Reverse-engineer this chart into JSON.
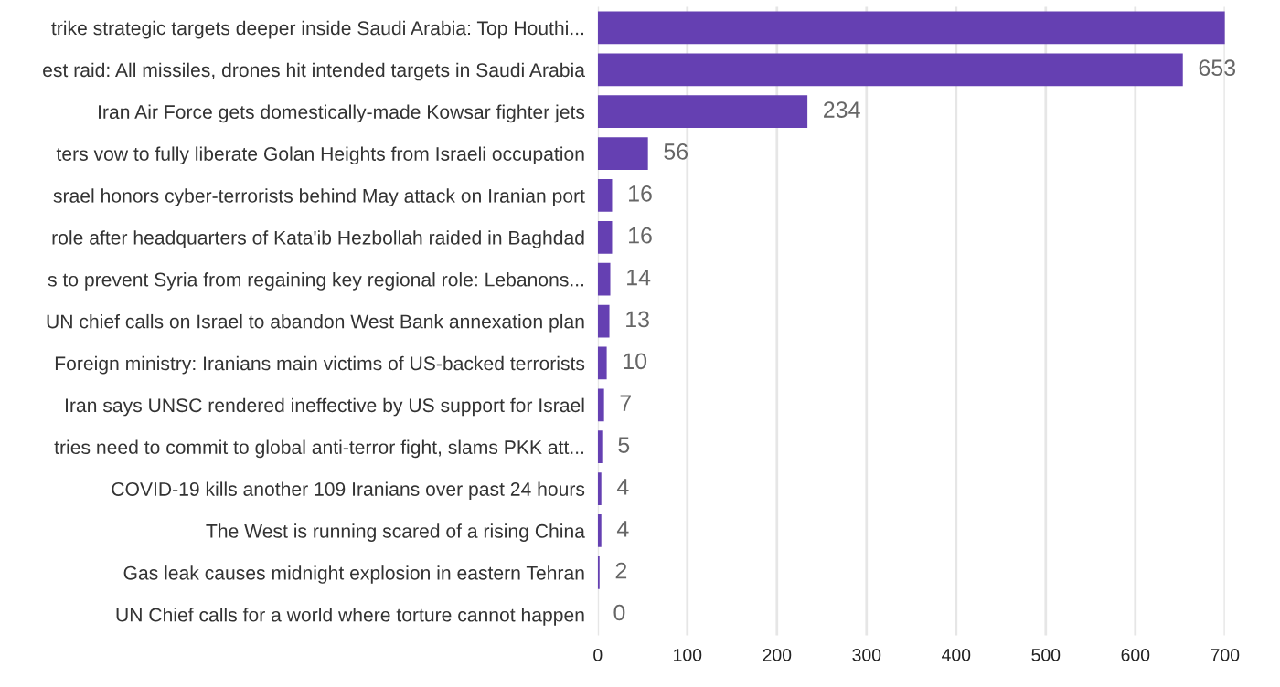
{
  "chart_data": {
    "type": "bar",
    "orientation": "horizontal",
    "categories": [
      "trike strategic targets deeper inside Saudi Arabia: Top Houthi...",
      "est raid: All missiles, drones hit intended targets in Saudi Arabia",
      "Iran Air Force gets domestically-made Kowsar fighter jets",
      "ters vow to fully liberate Golan Heights from Israeli occupation",
      "srael honors cyber-terrorists behind May attack on Iranian port",
      "role after headquarters of Kata'ib Hezbollah raided in Baghdad",
      "s to prevent Syria from regaining key regional role: Lebanons...",
      "UN chief calls on Israel to abandon West Bank annexation plan",
      "Foreign ministry: Iranians main victims of US-backed terrorists",
      "Iran says UNSC rendered ineffective by US support for Israel",
      "tries need to commit to global anti-terror fight, slams PKK att...",
      "COVID-19 kills another 109 Iranians over past 24 hours",
      "The West is running scared of a rising China",
      "Gas leak causes midnight explosion in eastern Tehran",
      "UN Chief calls for a world where torture cannot happen"
    ],
    "values": [
      700,
      653,
      234,
      56,
      16,
      16,
      14,
      13,
      10,
      7,
      5,
      4,
      4,
      2,
      0
    ],
    "value_labels": [
      null,
      "653",
      "234",
      "56",
      "16",
      "16",
      "14",
      "13",
      "10",
      "7",
      "5",
      "4",
      "4",
      "2",
      "0"
    ],
    "color": "#6540b2",
    "xlim": [
      0,
      700
    ],
    "xticks": [
      0,
      100,
      200,
      300,
      400,
      500,
      600,
      700
    ],
    "grid": "x",
    "legend": false
  }
}
